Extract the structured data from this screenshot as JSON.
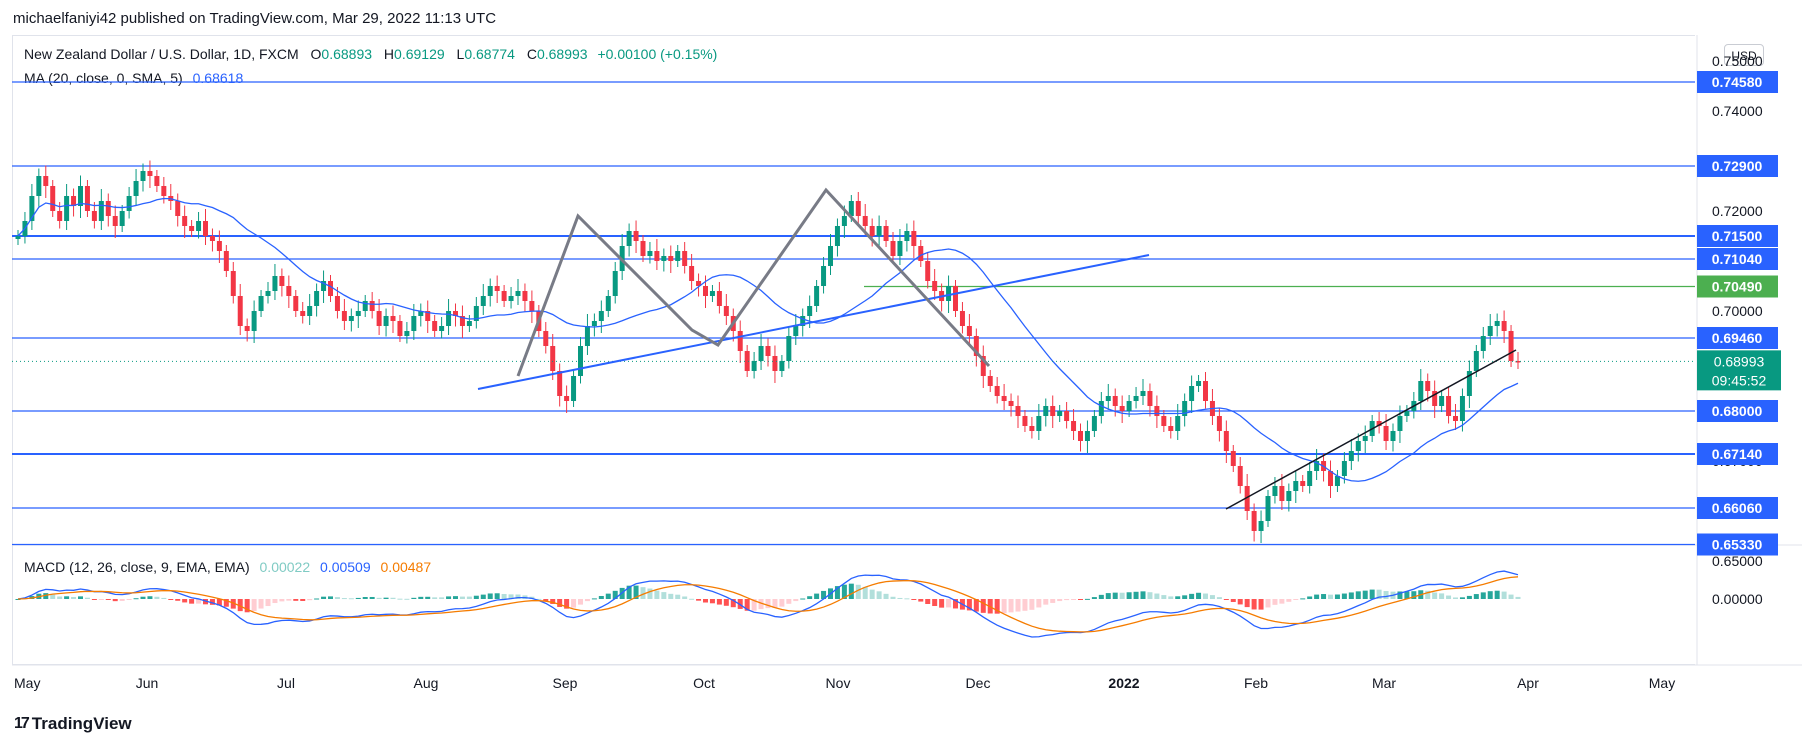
{
  "publisher": "michaelfaniyi42 published on TradingView.com, Mar 29, 2022 11:13 UTC",
  "legend": {
    "symbol": "New Zealand Dollar / U.S. Dollar, 1D, FXCM",
    "o_label": "O",
    "o": "0.68893",
    "h_label": "H",
    "h": "0.69129",
    "l_label": "L",
    "l": "0.68774",
    "c_label": "C",
    "c": "0.68993",
    "change": "+0.00100 (+0.15%)",
    "ma_label": "MA (20, close, 0, SMA, 5)",
    "ma_value": "0.68618",
    "macd_label": "MACD (12, 26, close, 9, EMA, EMA)",
    "macd_hist": "0.00022",
    "macd_line": "0.00509",
    "macd_signal": "0.00487"
  },
  "currency_button": "USD",
  "logo_text": "TradingView",
  "colors": {
    "up": "#089981",
    "down": "#f23645",
    "ma": "#2962ff",
    "level": "#2962ff",
    "macd": "#2962ff",
    "signal": "#f57c00",
    "resistance": "#4caf50",
    "pattern": "#787b86"
  },
  "chart_data": {
    "type": "candlestick",
    "y_axis_ticks": [
      "0.74000",
      "0.72000",
      "0.70000",
      "0.65000",
      "0.00000"
    ],
    "y_axis_ticks_partial": [
      "0.75000",
      "0.68000",
      "0.67000"
    ],
    "x_axis_labels": [
      "May",
      "Jun",
      "Jul",
      "Aug",
      "Sep",
      "Oct",
      "Nov",
      "Dec",
      "2022",
      "Feb",
      "Mar",
      "Apr",
      "May"
    ],
    "levels": [
      {
        "value": 0.7458,
        "label": "0.74580"
      },
      {
        "value": 0.729,
        "label": "0.72900"
      },
      {
        "value": 0.715,
        "label": "0.71500"
      },
      {
        "value": 0.7104,
        "label": "0.71040"
      },
      {
        "value": 0.7049,
        "label": "0.70490",
        "color": "#4caf50"
      },
      {
        "value": 0.6946,
        "label": "0.69460"
      },
      {
        "value": 0.68,
        "label": "0.68000"
      },
      {
        "value": 0.6714,
        "label": "0.67140"
      },
      {
        "value": 0.6606,
        "label": "0.66060"
      },
      {
        "value": 0.6533,
        "label": "0.65330"
      }
    ],
    "current_price": {
      "value": 0.68993,
      "label": "0.68993",
      "countdown": "09:45:52"
    },
    "closes": [
      0.715,
      0.718,
      0.723,
      0.727,
      0.725,
      0.72,
      0.718,
      0.723,
      0.721,
      0.725,
      0.72,
      0.718,
      0.722,
      0.719,
      0.717,
      0.72,
      0.723,
      0.726,
      0.728,
      0.727,
      0.725,
      0.723,
      0.722,
      0.719,
      0.717,
      0.716,
      0.718,
      0.715,
      0.714,
      0.712,
      0.708,
      0.703,
      0.697,
      0.696,
      0.7,
      0.703,
      0.704,
      0.707,
      0.705,
      0.703,
      0.7,
      0.699,
      0.701,
      0.704,
      0.706,
      0.703,
      0.7,
      0.698,
      0.699,
      0.7,
      0.702,
      0.7,
      0.697,
      0.699,
      0.698,
      0.695,
      0.696,
      0.699,
      0.7,
      0.698,
      0.696,
      0.697,
      0.7,
      0.699,
      0.697,
      0.698,
      0.701,
      0.703,
      0.705,
      0.704,
      0.702,
      0.703,
      0.704,
      0.702,
      0.7,
      0.696,
      0.693,
      0.688,
      0.683,
      0.682,
      0.687,
      0.693,
      0.697,
      0.698,
      0.7,
      0.703,
      0.708,
      0.713,
      0.716,
      0.714,
      0.711,
      0.712,
      0.71,
      0.711,
      0.71,
      0.712,
      0.709,
      0.706,
      0.705,
      0.703,
      0.704,
      0.701,
      0.699,
      0.696,
      0.692,
      0.688,
      0.69,
      0.693,
      0.691,
      0.688,
      0.69,
      0.695,
      0.697,
      0.699,
      0.701,
      0.705,
      0.709,
      0.713,
      0.717,
      0.719,
      0.722,
      0.719,
      0.717,
      0.715,
      0.717,
      0.714,
      0.711,
      0.714,
      0.716,
      0.713,
      0.71,
      0.706,
      0.704,
      0.702,
      0.705,
      0.7,
      0.697,
      0.695,
      0.691,
      0.687,
      0.685,
      0.683,
      0.682,
      0.681,
      0.679,
      0.677,
      0.676,
      0.679,
      0.681,
      0.679,
      0.68,
      0.678,
      0.676,
      0.674,
      0.676,
      0.679,
      0.682,
      0.683,
      0.681,
      0.68,
      0.682,
      0.683,
      0.684,
      0.681,
      0.679,
      0.677,
      0.676,
      0.679,
      0.682,
      0.685,
      0.686,
      0.682,
      0.679,
      0.676,
      0.672,
      0.669,
      0.665,
      0.66,
      0.656,
      0.658,
      0.663,
      0.665,
      0.662,
      0.664,
      0.666,
      0.665,
      0.668,
      0.67,
      0.668,
      0.665,
      0.667,
      0.67,
      0.672,
      0.674,
      0.675,
      0.678,
      0.677,
      0.674,
      0.676,
      0.679,
      0.68,
      0.682,
      0.686,
      0.684,
      0.681,
      0.683,
      0.679,
      0.678,
      0.683,
      0.688,
      0.692,
      0.695,
      0.697,
      0.698,
      0.696,
      0.69,
      0.6899
    ],
    "annotations": [
      {
        "type": "trendline",
        "desc": "rising support Aug-Nov",
        "color": "#2962ff"
      },
      {
        "type": "trendline",
        "desc": "rising support Jan-Mar",
        "color": "#131722"
      },
      {
        "type": "zigzag",
        "desc": "double top pattern",
        "color": "#787b86"
      }
    ]
  }
}
